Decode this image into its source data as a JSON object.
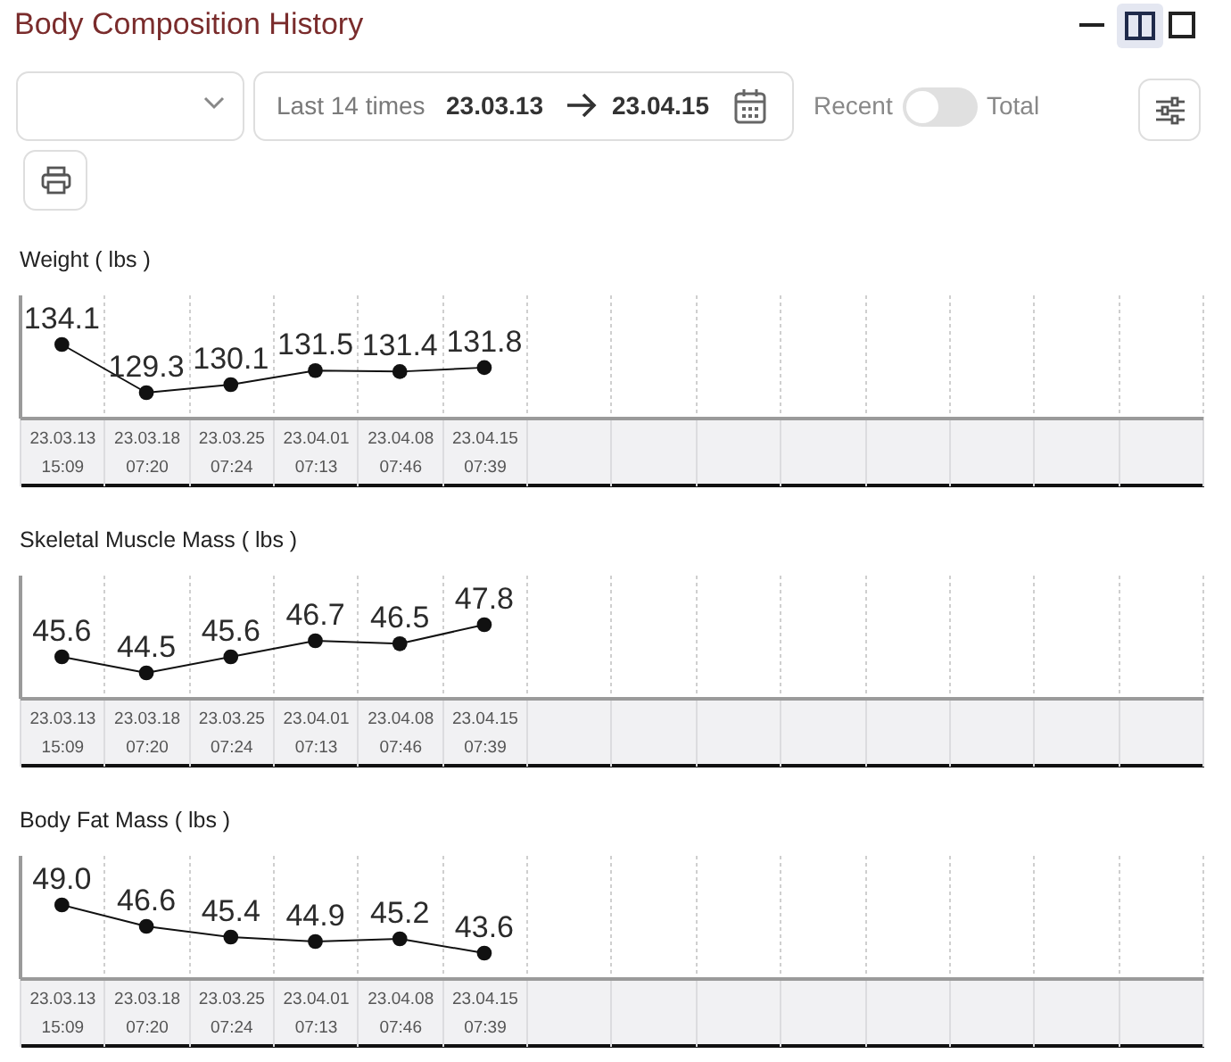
{
  "chart_data": [
    {
      "type": "other",
      "title": "Body Composition History",
      "annotations": [
        "Last 14 times",
        "23.03.13",
        "23.04.15",
        "Recent",
        "Total"
      ]
    },
    {
      "type": "line",
      "title": "Weight ( lbs )",
      "categories": [
        "23.03.13 15:09",
        "23.03.18 07:20",
        "23.03.25 07:24",
        "23.04.01 07:13",
        "23.04.08 07:46",
        "23.04.15 07:39",
        null,
        null,
        null,
        null,
        null,
        null,
        null,
        null
      ],
      "values": [
        134.1,
        129.3,
        130.1,
        131.5,
        131.4,
        131.8,
        null,
        null,
        null,
        null,
        null,
        null,
        null,
        null
      ],
      "color": "#111111",
      "marker": "circle",
      "line_style": "solid",
      "data_labels": true,
      "grid": "x",
      "tick_labels": "x"
    },
    {
      "type": "line",
      "title": "Skeletal Muscle Mass ( lbs )",
      "categories": [
        "23.03.13 15:09",
        "23.03.18 07:20",
        "23.03.25 07:24",
        "23.04.01 07:13",
        "23.04.08 07:46",
        "23.04.15 07:39",
        null,
        null,
        null,
        null,
        null,
        null,
        null,
        null
      ],
      "values": [
        45.6,
        44.5,
        45.6,
        46.7,
        46.5,
        47.8,
        null,
        null,
        null,
        null,
        null,
        null,
        null,
        null
      ],
      "color": "#111111",
      "marker": "circle",
      "line_style": "solid",
      "data_labels": true,
      "grid": "x",
      "tick_labels": "x"
    },
    {
      "type": "line",
      "title": "Body Fat Mass ( lbs )",
      "categories": [
        "23.03.13 15:09",
        "23.03.18 07:20",
        "23.03.25 07:24",
        "23.04.01 07:13",
        "23.04.08 07:46",
        "23.04.15 07:39",
        null,
        null,
        null,
        null,
        null,
        null,
        null,
        null
      ],
      "values": [
        49.0,
        46.6,
        45.4,
        44.9,
        45.2,
        43.6,
        null,
        null,
        null,
        null,
        null,
        null,
        null,
        null
      ],
      "value_labels": [
        "49.0",
        "46.6",
        "45.4",
        "44.9",
        "45.2",
        "43.6",
        null,
        null,
        null,
        null,
        null,
        null,
        null,
        null
      ],
      "color": "#111111",
      "marker": "circle",
      "line_style": "solid",
      "grid": "x",
      "tick_labels": "x"
    }
  ]
}
